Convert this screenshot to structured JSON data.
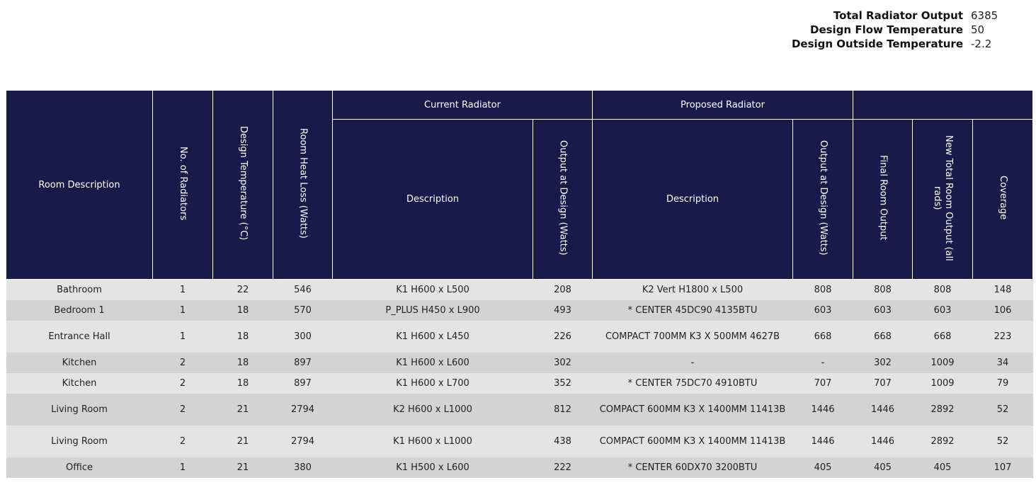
{
  "summary": {
    "total_output_label": "Total Radiator Output",
    "total_output_value": "6385",
    "flow_temp_label": "Design Flow Temperature",
    "flow_temp_value": "50",
    "outside_temp_label": "Design Outside Temperature",
    "outside_temp_value": "-2.2"
  },
  "table": {
    "headers": {
      "room_description": "Room Description",
      "no_of_radiators": "No. of Radiators",
      "design_temperature": "Design Temperature (°C)",
      "room_heat_loss": "Room Heat Loss (Watts)",
      "current_radiator": "Current Radiator",
      "proposed_radiator": "Proposed Radiator",
      "current_description": "Description",
      "current_output": "Output at Design (Watts)",
      "proposed_description": "Description",
      "proposed_output": "Output at Design (Watts)",
      "final_room_output": "Final Room Output",
      "new_total_room_output": "New Total Room Output (all rads)",
      "coverage": "Coverage"
    },
    "rows": [
      {
        "room": "Bathroom",
        "num": "1",
        "temp": "22",
        "loss": "546",
        "cur_desc": "K1 H600 x L500",
        "cur_out": "208",
        "prop_desc": "K2 Vert H1800 x L500",
        "prop_out": "808",
        "final": "808",
        "new_total": "808",
        "coverage": "148"
      },
      {
        "room": "Bedroom 1",
        "num": "1",
        "temp": "18",
        "loss": "570",
        "cur_desc": "P_PLUS H450 x L900",
        "cur_out": "493",
        "prop_desc": "* CENTER 45DC90 4135BTU",
        "prop_out": "603",
        "final": "603",
        "new_total": "603",
        "coverage": "106"
      },
      {
        "room": "Entrance Hall",
        "num": "1",
        "temp": "18",
        "loss": "300",
        "cur_desc": "K1 H600 x L450",
        "cur_out": "226",
        "prop_desc": "COMPACT 700MM K3 X 500MM 4627B",
        "prop_out": "668",
        "final": "668",
        "new_total": "668",
        "coverage": "223"
      },
      {
        "room": "Kitchen",
        "num": "2",
        "temp": "18",
        "loss": "897",
        "cur_desc": "K1 H600 x L600",
        "cur_out": "302",
        "prop_desc": "-",
        "prop_out": "-",
        "final": "302",
        "new_total": "1009",
        "coverage": "34"
      },
      {
        "room": "Kitchen",
        "num": "2",
        "temp": "18",
        "loss": "897",
        "cur_desc": "K1 H600 x L700",
        "cur_out": "352",
        "prop_desc": "* CENTER 75DC70 4910BTU",
        "prop_out": "707",
        "final": "707",
        "new_total": "1009",
        "coverage": "79"
      },
      {
        "room": "Living Room",
        "num": "2",
        "temp": "21",
        "loss": "2794",
        "cur_desc": "K2 H600 x L1000",
        "cur_out": "812",
        "prop_desc": "COMPACT 600MM K3 X 1400MM 11413B",
        "prop_out": "1446",
        "final": "1446",
        "new_total": "2892",
        "coverage": "52"
      },
      {
        "room": "Living Room",
        "num": "2",
        "temp": "21",
        "loss": "2794",
        "cur_desc": "K1 H600 x L1000",
        "cur_out": "438",
        "prop_desc": "COMPACT 600MM K3 X 1400MM 11413B",
        "prop_out": "1446",
        "final": "1446",
        "new_total": "2892",
        "coverage": "52"
      },
      {
        "room": "Office",
        "num": "1",
        "temp": "21",
        "loss": "380",
        "cur_desc": "K1 H500 x L600",
        "cur_out": "222",
        "prop_desc": "* CENTER 60DX70 3200BTU",
        "prop_out": "405",
        "final": "405",
        "new_total": "405",
        "coverage": "107"
      }
    ]
  },
  "colors": {
    "header_bg": "#1a1a4a",
    "row_light": "#e4e4e4",
    "row_dark": "#d3d3d3",
    "final_output_text": "#2e8b22"
  }
}
